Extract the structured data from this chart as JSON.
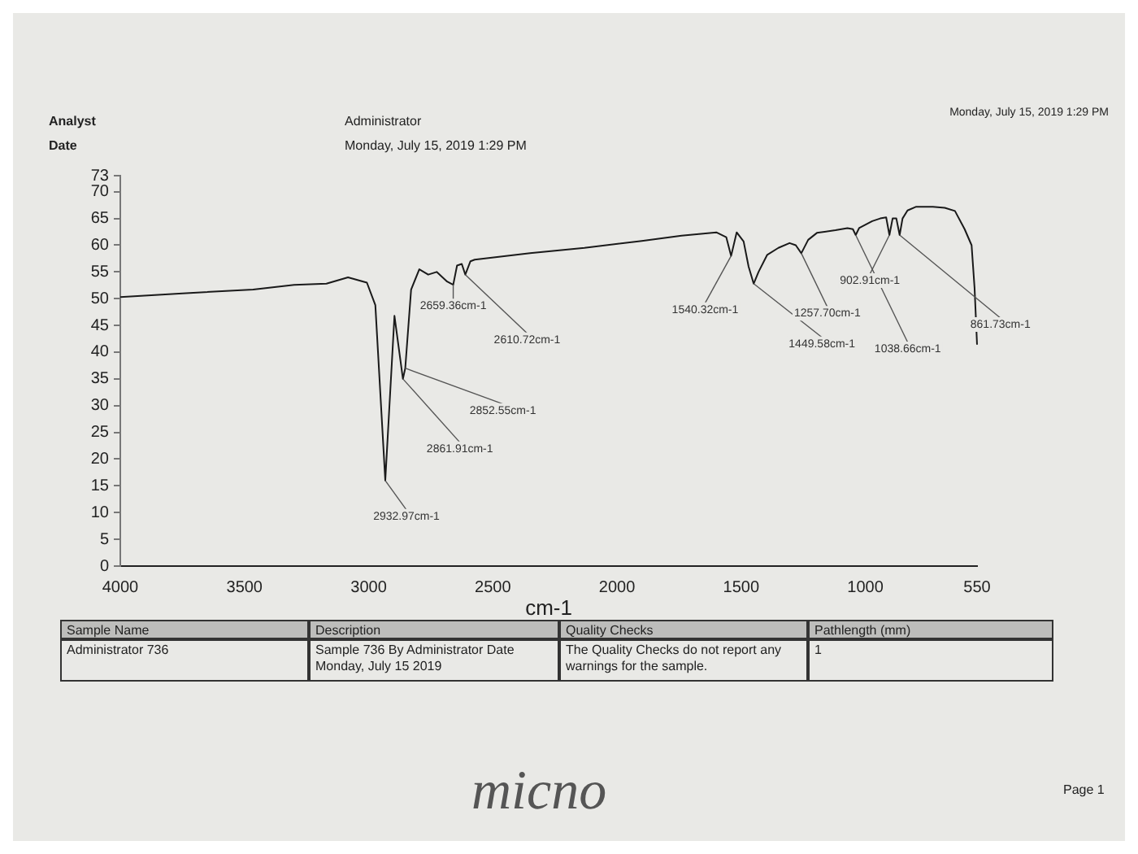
{
  "chart_data": {
    "type": "line",
    "xlabel": "cm-1",
    "x": [
      4000,
      3750,
      3465,
      3300,
      3170,
      3083,
      3007,
      2973,
      2932.97,
      2896,
      2861.91,
      2852.55,
      2829,
      2796,
      2760,
      2726,
      2684,
      2659.36,
      2644,
      2625,
      2610.72,
      2590,
      2573,
      2350,
      2131,
      1900,
      1740,
      1600,
      1560,
      1540.32,
      1518,
      1490,
      1470,
      1449.58,
      1430,
      1395,
      1350,
      1305,
      1280,
      1257.7,
      1230,
      1195,
      1120,
      1072,
      1050,
      1038.66,
      1025,
      972,
      940,
      916,
      902.91,
      890,
      875,
      861.73,
      850,
      830,
      795,
      728,
      680,
      639,
      600,
      572,
      560,
      550
    ],
    "series": [
      {
        "color": "#1a1a1a",
        "values": [
          50.3,
          51,
          51.7,
          52.6,
          52.8,
          54,
          53,
          48.8,
          16,
          46.8,
          35,
          37,
          51.7,
          55.5,
          54.5,
          55,
          53.2,
          52.6,
          56.2,
          56.5,
          54.5,
          57,
          57.3,
          58.5,
          59.5,
          60.8,
          61.8,
          62.4,
          61.5,
          58,
          62.4,
          60.7,
          56,
          52.8,
          55,
          58.2,
          59.5,
          60.4,
          60,
          58.5,
          61,
          62.3,
          62.8,
          63.2,
          63,
          61.9,
          63.2,
          64.5,
          65,
          65.2,
          61.9,
          65,
          65,
          61.9,
          65,
          66.5,
          67.2,
          67.2,
          67,
          66.4,
          63,
          60,
          52,
          41.4
        ]
      }
    ],
    "xlim": [
      4000,
      550
    ],
    "xticks": [
      4000,
      3500,
      3000,
      2500,
      2000,
      1500,
      1000,
      550
    ],
    "ylim": [
      0,
      73
    ],
    "yticks": [
      0,
      5,
      10,
      15,
      20,
      25,
      30,
      35,
      40,
      45,
      50,
      55,
      60,
      65,
      70,
      73
    ],
    "grid": false,
    "legend": false,
    "annotations": [
      {
        "text": "2659.36cm-1",
        "x": 2659.36,
        "y": 52.6
      },
      {
        "text": "2610.72cm-1",
        "x": 2610.72,
        "y": 54.5
      },
      {
        "text": "2852.55cm-1",
        "x": 2852.55,
        "y": 37
      },
      {
        "text": "2861.91cm-1",
        "x": 2861.91,
        "y": 35
      },
      {
        "text": "2932.97cm-1",
        "x": 2932.97,
        "y": 16
      },
      {
        "text": "1540.32cm-1",
        "x": 1540.32,
        "y": 58
      },
      {
        "text": "1449.58cm-1",
        "x": 1449.58,
        "y": 52.8
      },
      {
        "text": "1257.70cm-1",
        "x": 1257.7,
        "y": 58.5
      },
      {
        "text": "1038.66cm-1",
        "x": 1038.66,
        "y": 61.9
      },
      {
        "text": "902.91cm-1",
        "x": 902.91,
        "y": 61.9
      },
      {
        "text": "861.73cm-1",
        "x": 861.73,
        "y": 61.9
      },
      "Analyst",
      "Date",
      "Administrator",
      "Monday, July 15, 2019 1:29 PM",
      "Monday, July 15, 2019 1:29 PM",
      "Sample Name",
      "Description",
      "Quality Checks",
      "Pathlength (mm)",
      "Administrator 736",
      "Sample 736 By Administrator Date Monday, July 15 2019",
      "The Quality Checks do not report any warnings for the sample.",
      "1",
      "micno",
      "Page 1"
    ]
  }
}
